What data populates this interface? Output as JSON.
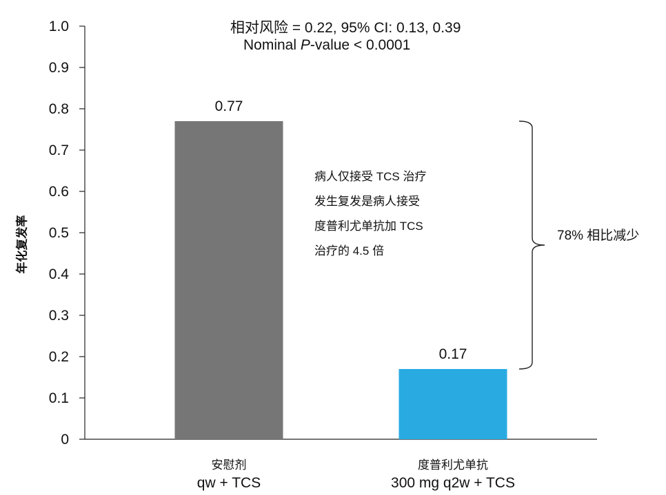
{
  "chart_data": {
    "type": "bar",
    "categories": [
      {
        "line1": "安慰剂",
        "line2": "qw + TCS"
      },
      {
        "line1": "度普利尤单抗",
        "line2": "300 mg q2w + TCS"
      }
    ],
    "values": [
      0.77,
      0.17
    ],
    "data_labels": [
      "0.77",
      "0.17"
    ],
    "colors": [
      "#767676",
      "#29abe2"
    ],
    "ylabel": "年化复发率",
    "xlabel": "",
    "ylim": [
      0,
      1.0
    ],
    "yticks": [
      "0",
      "0.1",
      "0.2",
      "0.3",
      "0.4",
      "0.5",
      "0.6",
      "0.7",
      "0.8",
      "0.9",
      "1.0"
    ],
    "grid": false,
    "annotations": {
      "stat_line1": "相对风险 = 0.22, 95% CI: 0.13, 0.39",
      "stat_line2_pre": "Nominal ",
      "stat_line2_p": "P",
      "stat_line2_post": "-value < 0.0001",
      "note_lines": [
        "病人仅接受 TCS 治疗",
        "发生复发是病人接受",
        "度普利尤单抗加 TCS",
        "治疗的 4.5 倍"
      ],
      "reduction": "78%  相比减少"
    }
  }
}
